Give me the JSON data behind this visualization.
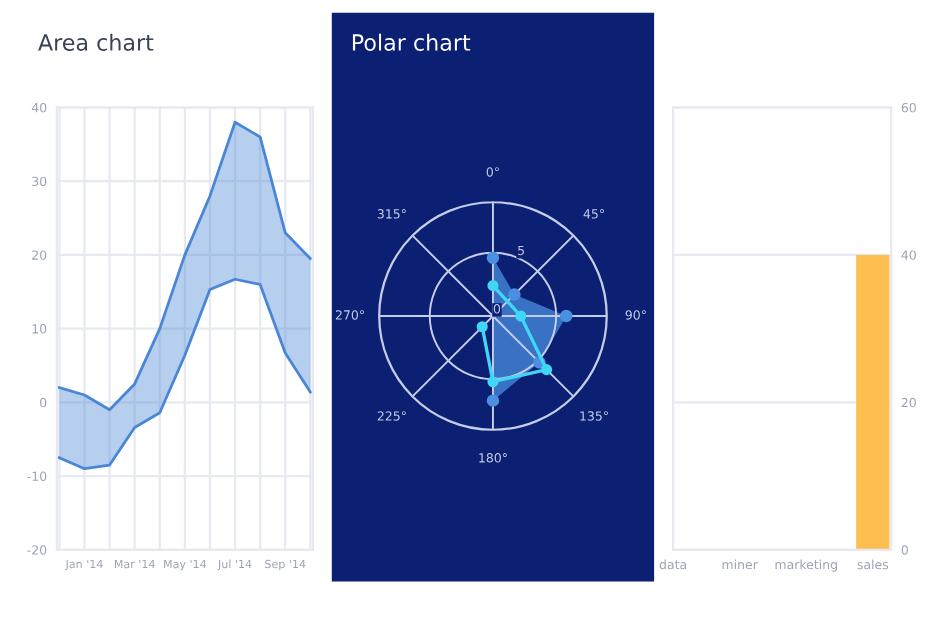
{
  "chart_data": [
    {
      "type": "area",
      "title": "Area chart",
      "categories": [
        null,
        "Jan '14",
        null,
        "Mar '14",
        null,
        "May '14",
        null,
        "Jul '14",
        null,
        "Sep '14",
        null
      ],
      "ylim": [
        -20,
        40
      ],
      "yticks": [
        -20,
        -10,
        0,
        10,
        20,
        30,
        40
      ],
      "grid": true,
      "series": [
        {
          "color": "#4a86d8",
          "type": "line",
          "values": [
            -7.5,
            -9,
            -8.5,
            -3.4,
            -1.4,
            6.4,
            15.3,
            16.7,
            16,
            6.7,
            1.4
          ]
        },
        {
          "color": "#4a86d8",
          "type": "line",
          "values": [
            2,
            1,
            -1,
            2.5,
            10,
            20,
            28,
            38,
            36,
            23,
            19.5
          ],
          "lower": [
            -7.5,
            -9,
            -8.5,
            -3.4,
            -1.4,
            6.4,
            15.3,
            16.7,
            16,
            6.7,
            1.4
          ],
          "upper": [
            2,
            1,
            -1,
            2.5,
            10,
            20,
            28,
            38,
            36,
            23,
            19.5
          ]
        }
      ]
    },
    {
      "type": "radar",
      "title": "Polar chart",
      "categories": [
        "0°",
        "45°",
        "90°",
        "135°",
        "180°",
        "225°",
        "270°",
        "315°"
      ],
      "ylim": [
        0,
        9
      ],
      "yticks": [
        0,
        5
      ],
      "series": [
        {
          "color": "#4a8fe0",
          "values": [
            4.6,
            2.4,
            5.8,
            5.2,
            6.7,
            null,
            null,
            null
          ]
        },
        {
          "color": "#3fd7f5",
          "values": [
            2.4,
            null,
            2.2,
            6.0,
            5.2,
            1.2,
            null,
            null
          ]
        }
      ]
    },
    {
      "type": "bar",
      "categories": [
        "data",
        "miner",
        "marketing",
        "sales"
      ],
      "values": [
        null,
        null,
        null,
        40
      ],
      "color": "#fdbf4f",
      "ylim": [
        0,
        60
      ],
      "yticks": [
        0,
        20,
        40,
        60
      ],
      "grid": "y"
    }
  ]
}
